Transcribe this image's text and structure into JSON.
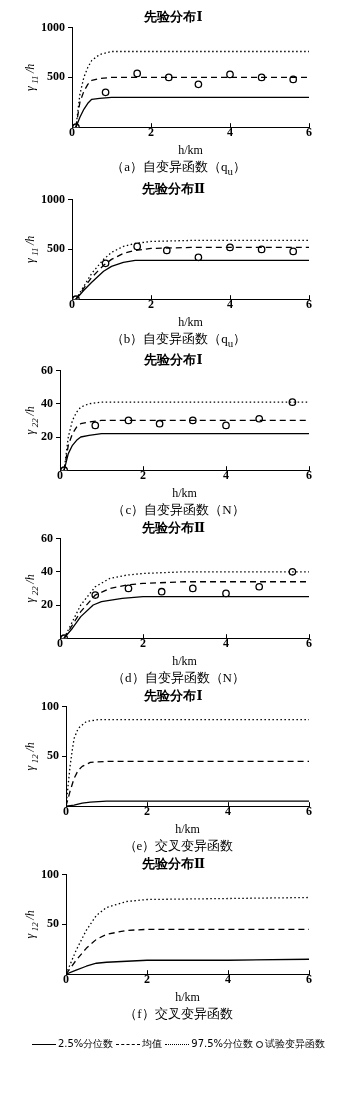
{
  "chart_data": [
    {
      "type": "line",
      "title": "先验分布Ⅰ",
      "xlabel": "h/km",
      "ylabel": "γ$_{11}$/h",
      "annotations": [
        "（a）自变异函数（q$_{u}$）"
      ],
      "xlim": [
        0,
        6
      ],
      "xticks": [
        0,
        2,
        4,
        6
      ],
      "ylim": [
        0,
        1000
      ],
      "yticks": [
        500,
        1000
      ],
      "grid": false,
      "legend": "bottom",
      "series": [
        {
          "name": "2.5%分位数",
          "color": "#000000",
          "line_style": "solid",
          "marker": "none",
          "x": [
            0.1,
            0.2,
            0.3,
            0.4,
            0.5,
            0.7,
            1.0,
            2,
            4,
            6
          ],
          "values": [
            0,
            100,
            180,
            240,
            280,
            290,
            300,
            300,
            300,
            300
          ]
        },
        {
          "name": "均值",
          "color": "#000000",
          "line_style": "dashed",
          "marker": "none",
          "x": [
            0.1,
            0.2,
            0.3,
            0.4,
            0.5,
            0.7,
            1.0,
            2,
            4,
            6
          ],
          "values": [
            0,
            250,
            360,
            430,
            470,
            490,
            500,
            500,
            500,
            500
          ]
        },
        {
          "name": "97.5%分位数",
          "color": "#000000",
          "line_style": "dotted",
          "marker": "none",
          "x": [
            0.1,
            0.2,
            0.3,
            0.4,
            0.5,
            0.7,
            1.0,
            1.5,
            2,
            4,
            6
          ],
          "values": [
            0,
            330,
            500,
            600,
            670,
            730,
            760,
            760,
            760,
            760,
            760
          ]
        },
        {
          "name": "试验变异函数",
          "type": "scatter",
          "color": "#000000",
          "marker": "circle",
          "x": [
            0.1,
            0.85,
            1.65,
            2.45,
            3.2,
            4.0,
            4.8,
            5.6
          ],
          "values": [
            0,
            350,
            540,
            500,
            430,
            530,
            500,
            480
          ]
        }
      ]
    },
    {
      "type": "line",
      "title": "先验分布Ⅱ",
      "xlabel": "h/km",
      "ylabel": "γ$_{11}$/h",
      "annotations": [
        "（b）自变异函数（q$_{u}$）"
      ],
      "xlim": [
        0,
        6
      ],
      "xticks": [
        0,
        2,
        4,
        6
      ],
      "ylim": [
        0,
        1000
      ],
      "yticks": [
        500,
        1000
      ],
      "grid": false,
      "series": [
        {
          "color": "#000000",
          "line_style": "solid",
          "marker": "none",
          "x": [
            0.1,
            0.3,
            0.5,
            0.8,
            1.0,
            1.3,
            1.6,
            2,
            4,
            6
          ],
          "values": [
            0,
            90,
            170,
            280,
            330,
            370,
            390,
            390,
            390,
            390
          ]
        },
        {
          "color": "#000000",
          "line_style": "dashed",
          "marker": "none",
          "x": [
            0.1,
            0.3,
            0.5,
            0.8,
            1.0,
            1.3,
            1.6,
            2,
            3,
            6
          ],
          "values": [
            0,
            110,
            220,
            340,
            400,
            460,
            490,
            510,
            520,
            520
          ]
        },
        {
          "color": "#000000",
          "line_style": "dotted",
          "marker": "none",
          "x": [
            0.1,
            0.3,
            0.5,
            0.8,
            1.0,
            1.3,
            1.6,
            2,
            3,
            6
          ],
          "values": [
            0,
            130,
            260,
            400,
            470,
            530,
            560,
            580,
            590,
            590
          ]
        },
        {
          "type": "scatter",
          "color": "#000000",
          "marker": "circle",
          "x": [
            0.1,
            0.85,
            1.65,
            2.4,
            3.2,
            4.0,
            4.8,
            5.6
          ],
          "values": [
            0,
            360,
            530,
            490,
            420,
            520,
            500,
            480
          ]
        }
      ]
    },
    {
      "type": "line",
      "title": "先验分布Ⅰ",
      "xlabel": "h/km",
      "ylabel": "γ$_{22}$/h",
      "annotations": [
        "（c）自变异函数（N）"
      ],
      "xlim": [
        0,
        6
      ],
      "xticks": [
        0,
        2,
        4,
        6
      ],
      "ylim": [
        0,
        60
      ],
      "yticks": [
        20,
        40,
        60
      ],
      "grid": false,
      "series": [
        {
          "color": "#000000",
          "line_style": "solid",
          "marker": "none",
          "x": [
            0.1,
            0.2,
            0.3,
            0.4,
            0.5,
            0.7,
            1.0,
            6
          ],
          "values": [
            0,
            10,
            15,
            18,
            20,
            21,
            22,
            22
          ]
        },
        {
          "color": "#000000",
          "line_style": "dashed",
          "marker": "none",
          "x": [
            0.1,
            0.2,
            0.3,
            0.4,
            0.5,
            0.7,
            1.0,
            6
          ],
          "values": [
            0,
            15,
            22,
            26,
            28,
            29,
            30,
            30
          ]
        },
        {
          "color": "#000000",
          "line_style": "dotted",
          "marker": "none",
          "x": [
            0.1,
            0.2,
            0.3,
            0.4,
            0.5,
            0.7,
            1.0,
            6
          ],
          "values": [
            0,
            20,
            30,
            35,
            38,
            40,
            41,
            41
          ]
        },
        {
          "type": "scatter",
          "color": "#000000",
          "marker": "circle",
          "x": [
            0.1,
            0.85,
            1.65,
            2.4,
            3.2,
            4.0,
            4.8,
            5.6
          ],
          "values": [
            0,
            27,
            30,
            28,
            30,
            27,
            31,
            41
          ]
        }
      ]
    },
    {
      "type": "line",
      "title": "先验分布Ⅱ",
      "xlabel": "h/km",
      "ylabel": "γ$_{22}$/h",
      "annotations": [
        "（d）自变异函数（N）"
      ],
      "xlim": [
        0,
        6
      ],
      "xticks": [
        0,
        2,
        4,
        6
      ],
      "ylim": [
        0,
        60
      ],
      "yticks": [
        20,
        40,
        60
      ],
      "grid": false,
      "series": [
        {
          "color": "#000000",
          "line_style": "solid",
          "marker": "none",
          "x": [
            0.1,
            0.3,
            0.5,
            0.8,
            1.0,
            1.5,
            2,
            4,
            6
          ],
          "values": [
            0,
            6,
            13,
            20,
            22,
            24,
            25,
            25,
            25
          ]
        },
        {
          "color": "#000000",
          "line_style": "dashed",
          "marker": "none",
          "x": [
            0.1,
            0.3,
            0.5,
            0.85,
            1.2,
            1.6,
            2,
            3,
            6
          ],
          "values": [
            0,
            8,
            16,
            26,
            30,
            32,
            33,
            34,
            34
          ]
        },
        {
          "color": "#000000",
          "line_style": "dotted",
          "marker": "none",
          "x": [
            0.1,
            0.3,
            0.5,
            0.85,
            1.2,
            1.6,
            2,
            3,
            6
          ],
          "values": [
            0,
            10,
            20,
            31,
            36,
            38,
            39,
            40,
            40
          ]
        },
        {
          "type": "scatter",
          "color": "#000000",
          "marker": "circle",
          "x": [
            0.1,
            0.85,
            1.65,
            2.45,
            3.2,
            4.0,
            4.8,
            5.6
          ],
          "values": [
            0,
            26,
            30,
            28,
            30,
            27,
            31,
            40
          ]
        }
      ]
    },
    {
      "type": "line",
      "title": "先验分布Ⅰ",
      "xlabel": "h/km",
      "ylabel": "γ$_{12}$/h",
      "annotations": [
        "（e）交叉变异函数"
      ],
      "xlim": [
        0,
        6
      ],
      "xticks": [
        0,
        2,
        4,
        6
      ],
      "ylim": [
        0,
        100
      ],
      "yticks": [
        50,
        100
      ],
      "grid": false,
      "series": [
        {
          "color": "#000000",
          "line_style": "solid",
          "marker": "none",
          "x": [
            0,
            0.2,
            0.3,
            0.4,
            0.6,
            1,
            6
          ],
          "values": [
            0,
            1,
            2,
            3,
            4,
            5,
            5
          ]
        },
        {
          "color": "#000000",
          "line_style": "dashed",
          "marker": "none",
          "x": [
            0,
            0.1,
            0.2,
            0.3,
            0.4,
            0.6,
            1,
            6
          ],
          "values": [
            0,
            15,
            28,
            36,
            40,
            44,
            45,
            45
          ]
        },
        {
          "color": "#000000",
          "line_style": "dotted",
          "marker": "none",
          "x": [
            0,
            0.1,
            0.15,
            0.2,
            0.3,
            0.5,
            0.8,
            6
          ],
          "values": [
            0,
            40,
            55,
            68,
            78,
            85,
            87,
            87
          ]
        }
      ]
    },
    {
      "type": "line",
      "title": "先验分布Ⅱ",
      "xlabel": "h/km",
      "ylabel": "γ$_{12}$/h",
      "annotations": [
        "（f）交叉变异函数"
      ],
      "xlim": [
        0,
        6
      ],
      "xticks": [
        0,
        2,
        4,
        6
      ],
      "ylim": [
        0,
        100
      ],
      "yticks": [
        50,
        100
      ],
      "grid": false,
      "series": [
        {
          "color": "#000000",
          "line_style": "solid",
          "marker": "none",
          "x": [
            0,
            0.25,
            0.5,
            0.75,
            1,
            1.5,
            2,
            4,
            6
          ],
          "values": [
            0,
            4,
            8,
            11,
            12,
            13,
            14,
            14,
            15
          ]
        },
        {
          "color": "#000000",
          "line_style": "dashed",
          "marker": "none",
          "x": [
            0,
            0.25,
            0.5,
            0.75,
            1,
            1.5,
            2,
            4,
            6
          ],
          "values": [
            0,
            14,
            26,
            35,
            40,
            44,
            45,
            45,
            45
          ]
        },
        {
          "color": "#000000",
          "line_style": "dotted",
          "marker": "none",
          "x": [
            0,
            0.25,
            0.5,
            0.75,
            1,
            1.5,
            2,
            4,
            6
          ],
          "values": [
            0,
            24,
            44,
            59,
            67,
            73,
            75,
            76,
            77
          ]
        }
      ]
    }
  ]
}
